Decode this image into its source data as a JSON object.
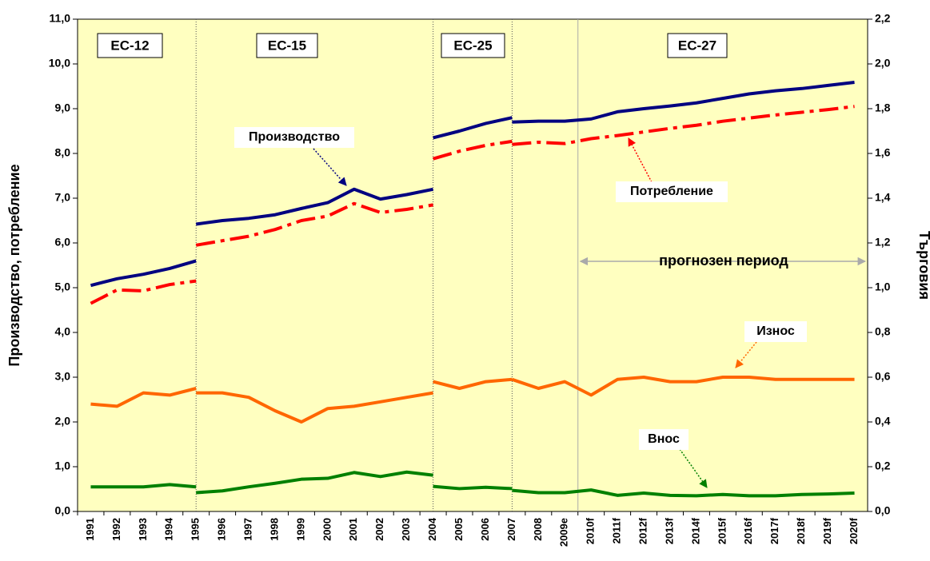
{
  "chart_data": {
    "type": "line",
    "ylabel": "Производство, потребление",
    "y2label": "Търговия",
    "categories": [
      "1991",
      "1992",
      "1993",
      "1994",
      "1995",
      "1996",
      "1997",
      "1998",
      "1999",
      "2000",
      "2001",
      "2002",
      "2003",
      "2004",
      "2005",
      "2006",
      "2007",
      "2008",
      "2009e",
      "2010f",
      "2011f",
      "2012f",
      "2013f",
      "2014f",
      "2015f",
      "2016f",
      "2017f",
      "2018f",
      "2019f",
      "2020f"
    ],
    "ylim": [
      0,
      11
    ],
    "yticks": [
      {
        "value": 0,
        "label": "0,0"
      },
      {
        "value": 1,
        "label": "1,0"
      },
      {
        "value": 2,
        "label": "2,0"
      },
      {
        "value": 3,
        "label": "3,0"
      },
      {
        "value": 4,
        "label": "4,0"
      },
      {
        "value": 5,
        "label": "5,0"
      },
      {
        "value": 6,
        "label": "6,0"
      },
      {
        "value": 7,
        "label": "7,0"
      },
      {
        "value": 8,
        "label": "8,0"
      },
      {
        "value": 9,
        "label": "9,0"
      },
      {
        "value": 10,
        "label": "10,0"
      },
      {
        "value": 11,
        "label": "11,0"
      }
    ],
    "y2lim": [
      0,
      2.2
    ],
    "y2ticks": [
      {
        "value": 0,
        "label": "0,0"
      },
      {
        "value": 0.2,
        "label": "0,2"
      },
      {
        "value": 0.4,
        "label": "0,4"
      },
      {
        "value": 0.6,
        "label": "0,6"
      },
      {
        "value": 0.8,
        "label": "0,8"
      },
      {
        "value": 1,
        "label": "1,0"
      },
      {
        "value": 1.2,
        "label": "1,2"
      },
      {
        "value": 1.4,
        "label": "1,4"
      },
      {
        "value": 1.6,
        "label": "1,6"
      },
      {
        "value": 1.8,
        "label": "1,8"
      },
      {
        "value": 2,
        "label": "2,0"
      },
      {
        "value": 2.2,
        "label": "2,2"
      }
    ],
    "periods": [
      "ЕС-12",
      "ЕС-15",
      "ЕС-25",
      "ЕС-27"
    ],
    "forecast_label": "прогнозен период",
    "series": [
      {
        "name": "Производство",
        "color": "#000080",
        "dash": false,
        "values": [
          5.05,
          5.2,
          5.3,
          5.43,
          5.6,
          null,
          null,
          null,
          null,
          null,
          null,
          null,
          null,
          null,
          null,
          null,
          null,
          null,
          null,
          null,
          null,
          null,
          null,
          null,
          null,
          null,
          null,
          null,
          null,
          null
        ]
      },
      {
        "color": "#000080",
        "dash": false,
        "values": [
          null,
          null,
          null,
          null,
          6.42,
          6.5,
          6.55,
          6.63,
          6.77,
          6.9,
          7.2,
          6.98,
          7.08,
          7.2,
          null,
          null,
          null,
          null,
          null,
          null,
          null,
          null,
          null,
          null,
          null,
          null,
          null,
          null,
          null,
          null
        ]
      },
      {
        "color": "#000080",
        "dash": false,
        "values": [
          null,
          null,
          null,
          null,
          null,
          null,
          null,
          null,
          null,
          null,
          null,
          null,
          null,
          8.35,
          8.5,
          8.67,
          8.8,
          null,
          null,
          null,
          null,
          null,
          null,
          null,
          null,
          null,
          null,
          null,
          null,
          null
        ]
      },
      {
        "color": "#000080",
        "dash": false,
        "values": [
          null,
          null,
          null,
          null,
          null,
          null,
          null,
          null,
          null,
          null,
          null,
          null,
          null,
          null,
          null,
          null,
          8.7,
          8.72,
          8.72,
          8.77,
          8.93,
          9.0,
          9.06,
          9.13,
          9.23,
          9.33,
          9.4,
          9.45,
          9.52,
          9.59
        ]
      },
      {
        "name": "Потребление",
        "color": "#ff0000",
        "dash": true,
        "values": [
          4.65,
          4.95,
          4.93,
          5.07,
          5.15,
          null,
          null,
          null,
          null,
          null,
          null,
          null,
          null,
          null,
          null,
          null,
          null,
          null,
          null,
          null,
          null,
          null,
          null,
          null,
          null,
          null,
          null,
          null,
          null,
          null
        ]
      },
      {
        "color": "#ff0000",
        "dash": true,
        "values": [
          null,
          null,
          null,
          null,
          5.95,
          6.05,
          6.15,
          6.3,
          6.5,
          6.6,
          6.88,
          6.68,
          6.75,
          6.85,
          null,
          null,
          null,
          null,
          null,
          null,
          null,
          null,
          null,
          null,
          null,
          null,
          null,
          null,
          null,
          null
        ]
      },
      {
        "color": "#ff0000",
        "dash": true,
        "values": [
          null,
          null,
          null,
          null,
          null,
          null,
          null,
          null,
          null,
          null,
          null,
          null,
          null,
          7.88,
          8.05,
          8.18,
          8.27,
          null,
          null,
          null,
          null,
          null,
          null,
          null,
          null,
          null,
          null,
          null,
          null,
          null
        ]
      },
      {
        "color": "#ff0000",
        "dash": true,
        "values": [
          null,
          null,
          null,
          null,
          null,
          null,
          null,
          null,
          null,
          null,
          null,
          null,
          null,
          null,
          null,
          null,
          8.2,
          8.25,
          8.22,
          8.33,
          8.4,
          8.48,
          8.56,
          8.63,
          8.72,
          8.79,
          8.86,
          8.92,
          8.98,
          9.05
        ]
      },
      {
        "name": "Износ",
        "axis": "y2",
        "color": "#ff6600",
        "dash": false,
        "values": [
          0.48,
          0.47,
          0.53,
          0.52,
          0.55,
          null,
          null,
          null,
          null,
          null,
          null,
          null,
          null,
          null,
          null,
          null,
          null,
          null,
          null,
          null,
          null,
          null,
          null,
          null,
          null,
          null,
          null,
          null,
          null,
          null
        ]
      },
      {
        "axis": "y2",
        "color": "#ff6600",
        "dash": false,
        "values": [
          null,
          null,
          null,
          null,
          0.53,
          0.53,
          0.51,
          0.45,
          0.4,
          0.46,
          0.47,
          0.49,
          0.51,
          0.53,
          null,
          null,
          null,
          null,
          null,
          null,
          null,
          null,
          null,
          null,
          null,
          null,
          null,
          null,
          null,
          null
        ]
      },
      {
        "axis": "y2",
        "color": "#ff6600",
        "dash": false,
        "values": [
          null,
          null,
          null,
          null,
          null,
          null,
          null,
          null,
          null,
          null,
          null,
          null,
          null,
          0.58,
          0.55,
          0.58,
          0.59,
          null,
          null,
          null,
          null,
          null,
          null,
          null,
          null,
          null,
          null,
          null,
          null,
          null
        ]
      },
      {
        "axis": "y2",
        "color": "#ff6600",
        "dash": false,
        "values": [
          null,
          null,
          null,
          null,
          null,
          null,
          null,
          null,
          null,
          null,
          null,
          null,
          null,
          null,
          null,
          null,
          0.59,
          0.55,
          0.58,
          0.52,
          0.59,
          0.6,
          0.58,
          0.58,
          0.6,
          0.6,
          0.59,
          0.59,
          0.59,
          0.59
        ]
      },
      {
        "name": "Внос",
        "axis": "y2",
        "color": "#008000",
        "dash": false,
        "values": [
          0.11,
          0.11,
          0.11,
          0.12,
          0.11,
          null,
          null,
          null,
          null,
          null,
          null,
          null,
          null,
          null,
          null,
          null,
          null,
          null,
          null,
          null,
          null,
          null,
          null,
          null,
          null,
          null,
          null,
          null,
          null,
          null
        ]
      },
      {
        "axis": "y2",
        "color": "#008000",
        "dash": false,
        "values": [
          null,
          null,
          null,
          null,
          0.084,
          0.092,
          0.11,
          0.126,
          0.144,
          0.148,
          0.174,
          0.156,
          0.176,
          0.162,
          null,
          null,
          null,
          null,
          null,
          null,
          null,
          null,
          null,
          null,
          null,
          null,
          null,
          null,
          null,
          null
        ]
      },
      {
        "axis": "y2",
        "color": "#008000",
        "dash": false,
        "values": [
          null,
          null,
          null,
          null,
          null,
          null,
          null,
          null,
          null,
          null,
          null,
          null,
          null,
          0.112,
          0.102,
          0.108,
          0.102,
          null,
          null,
          null,
          null,
          null,
          null,
          null,
          null,
          null,
          null,
          null,
          null,
          null
        ]
      },
      {
        "axis": "y2",
        "color": "#008000",
        "dash": false,
        "values": [
          null,
          null,
          null,
          null,
          null,
          null,
          null,
          null,
          null,
          null,
          null,
          null,
          null,
          null,
          null,
          null,
          0.094,
          0.084,
          0.084,
          0.096,
          0.072,
          0.082,
          0.072,
          0.07,
          0.076,
          0.07,
          0.07,
          0.076,
          0.078,
          0.082
        ]
      }
    ]
  }
}
